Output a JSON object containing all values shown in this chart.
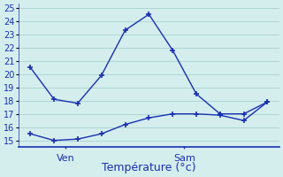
{
  "title": "Température (°c)",
  "background_color": "#d4eeee",
  "grid_color": "#b0d4d4",
  "line_color": "#1a2fb0",
  "axis_color": "#1a2fb0",
  "ylim": [
    14.5,
    25.3
  ],
  "xlim": [
    -0.5,
    10.5
  ],
  "yticks": [
    15,
    16,
    17,
    18,
    19,
    20,
    21,
    22,
    23,
    24,
    25
  ],
  "series1_x": [
    0,
    1,
    2,
    3,
    4,
    5,
    6,
    7,
    8,
    9,
    10
  ],
  "series1_y": [
    20.5,
    18.1,
    17.8,
    19.9,
    23.3,
    24.5,
    21.8,
    18.5,
    17.0,
    17.0,
    17.9
  ],
  "series2_x": [
    0,
    1,
    2,
    3,
    4,
    5,
    6,
    7,
    8,
    9,
    10
  ],
  "series2_y": [
    15.5,
    15.0,
    15.1,
    15.5,
    16.2,
    16.7,
    17.0,
    17.0,
    16.9,
    16.5,
    17.9
  ],
  "ven_x": 1.5,
  "sam_x": 6.5,
  "ven_label": "Ven",
  "sam_label": "Sam",
  "xlabel": "Température (°c)",
  "xlabel_fontsize": 9,
  "tick_fontsize": 7,
  "label_fontsize": 8
}
